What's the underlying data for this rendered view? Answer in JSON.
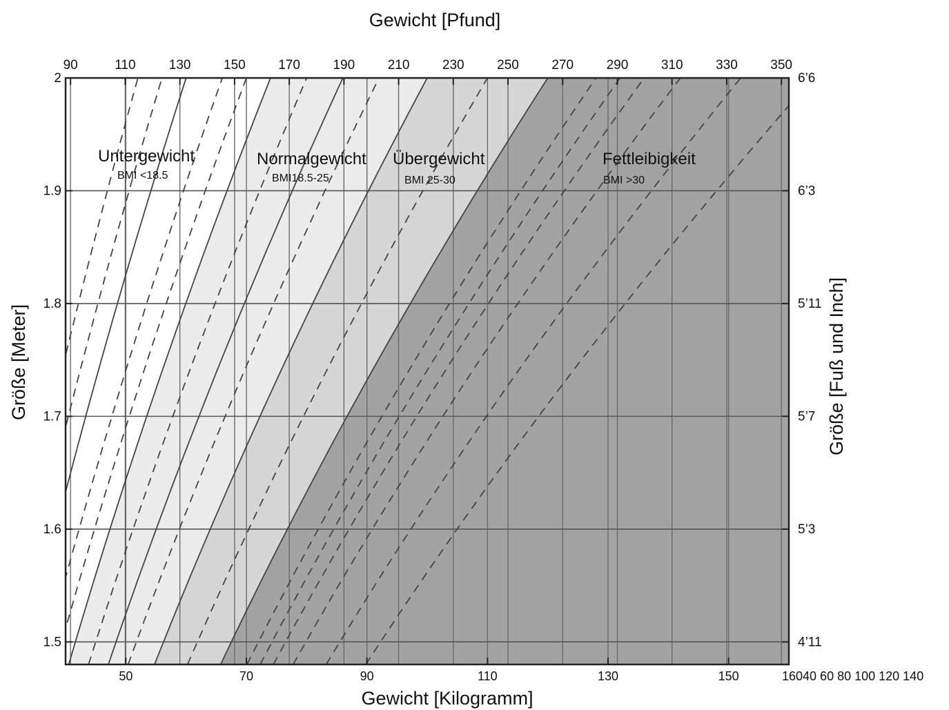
{
  "chart_data": {
    "type": "area",
    "title": "Gewicht [Pfund]",
    "xlabel": "Gewicht [Kilogramm]",
    "ylabel": "Größe [Meter]",
    "ylabel_right": "Größe [Fuß und Inch]",
    "xlim_kg": [
      40,
      160
    ],
    "ylim_m": [
      1.48,
      2.0
    ],
    "x_ticks_kg": [
      50,
      70,
      90,
      110,
      130,
      150
    ],
    "x_ticks_kg_right_label": "16040 60 80 100 120 140",
    "x_ticks_lb": [
      90,
      110,
      130,
      150,
      170,
      190,
      210,
      230,
      250,
      270,
      290,
      310,
      330,
      350
    ],
    "y_ticks_m": [
      1.5,
      1.6,
      1.7,
      1.8,
      1.9,
      2
    ],
    "y_ticks_ftin": [
      "4’11",
      "5’3",
      "5’7",
      "5’11",
      "6’3",
      "6’6"
    ],
    "grid": true,
    "regions": [
      {
        "name": "Untergewicht",
        "bmi_label": "BMI <18.5",
        "bmi_min": null,
        "bmi_max": 18.5,
        "color": "#ffffff"
      },
      {
        "name": "Normalgewicht",
        "bmi_label": "BMI18.5-25",
        "bmi_min": 18.5,
        "bmi_max": 25,
        "color": "#ececec"
      },
      {
        "name": "Übergewicht",
        "bmi_label": "BMI 25-30",
        "bmi_min": 25,
        "bmi_max": 30,
        "color": "#d6d6d6"
      },
      {
        "name": "Fettleibigkeit",
        "bmi_label": "BMI >30",
        "bmi_min": 30,
        "bmi_max": null,
        "color": "#a3a3a3"
      }
    ],
    "solid_bmi_lines": [
      15,
      18.5,
      21.5,
      25,
      30
    ],
    "dashed_bmi_lines": [
      13,
      14,
      16.5,
      17.5,
      20,
      23,
      27.5,
      32,
      33,
      34,
      35.5,
      38,
      41
    ]
  }
}
